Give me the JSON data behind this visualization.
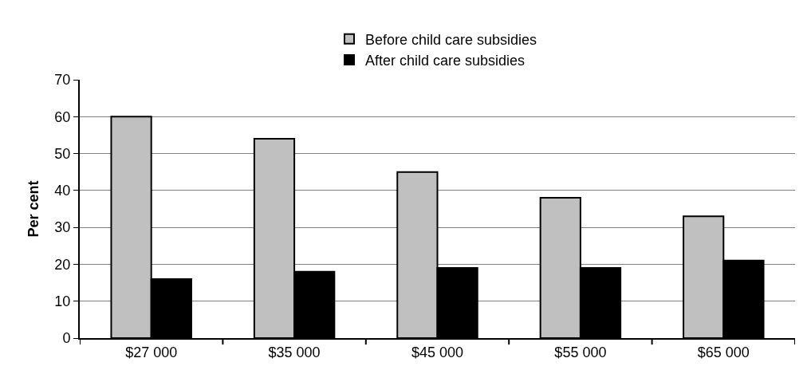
{
  "chart_data": {
    "type": "bar",
    "ylabel": "Per cent",
    "categories": [
      "$27 000",
      "$35 000",
      "$45 000",
      "$55 000",
      "$65 000"
    ],
    "series": [
      {
        "name": "Before child care subsidies",
        "color": "#c0c0c0",
        "values": [
          60,
          54,
          45,
          38,
          33
        ]
      },
      {
        "name": "After child care subsidies",
        "color": "#000000",
        "values": [
          16,
          18,
          19,
          19,
          21
        ]
      }
    ],
    "ylim": [
      0,
      70
    ],
    "yticks": [
      0,
      10,
      20,
      30,
      40,
      50,
      60,
      70
    ],
    "grid": "y",
    "legend": "top"
  }
}
